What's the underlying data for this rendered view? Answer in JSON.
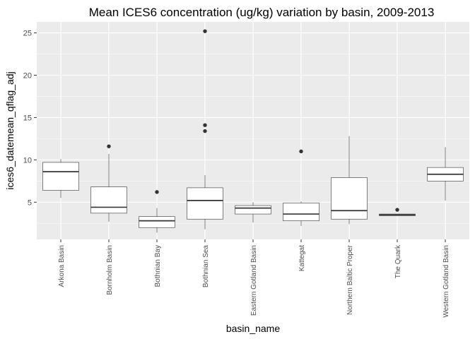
{
  "chart_data": {
    "type": "box",
    "title": "Mean ICES6 concentration (ug/kg) variation by basin, 2009-2013",
    "xlabel": "basin_name",
    "ylabel": "ices6_datemean_qflag_adj",
    "ylim": [
      0.6,
      26.3
    ],
    "yticks": [
      5,
      10,
      15,
      20,
      25
    ],
    "ytick_labels": [
      "5",
      "10",
      "15",
      "20",
      "25"
    ],
    "grid": true,
    "legend": "none",
    "colors": {
      "panel_background": "#ebebeb",
      "grid_major": "#ffffff",
      "box_fill": "#ffffff",
      "box_line": "#333333",
      "outlier": "#333333"
    },
    "categories": [
      "Arkona Basin",
      "Bornholm Basin",
      "Bothnian Bay",
      "Bothnian Sea",
      "Eastern Gotland Basin",
      "Kattegat",
      "Northern Baltic Proper",
      "The Quark",
      "Western Gotland Basin"
    ],
    "boxes": [
      {
        "min": 5.5,
        "q1": 6.4,
        "median": 8.6,
        "q3": 9.7,
        "max": 10.1,
        "outliers": []
      },
      {
        "min": 2.7,
        "q1": 3.7,
        "median": 4.4,
        "q3": 6.8,
        "max": 10.7,
        "outliers": [
          11.6
        ]
      },
      {
        "min": 1.4,
        "q1": 2.0,
        "median": 2.8,
        "q3": 3.3,
        "max": 4.3,
        "outliers": [
          6.2
        ]
      },
      {
        "min": 1.8,
        "q1": 3.0,
        "median": 5.2,
        "q3": 6.7,
        "max": 8.2,
        "outliers": [
          13.4,
          14.1,
          25.2
        ]
      },
      {
        "min": 2.6,
        "q1": 3.6,
        "median": 4.3,
        "q3": 4.6,
        "max": 5.0,
        "outliers": []
      },
      {
        "min": 2.2,
        "q1": 2.8,
        "median": 3.6,
        "q3": 4.9,
        "max": 5.1,
        "outliers": [
          11.0
        ]
      },
      {
        "min": 2.4,
        "q1": 3.0,
        "median": 4.0,
        "q3": 7.9,
        "max": 12.8,
        "outliers": []
      },
      {
        "min": 3.4,
        "q1": 3.4,
        "median": 3.5,
        "q3": 3.6,
        "max": 3.6,
        "outliers": [
          4.1
        ]
      },
      {
        "min": 5.2,
        "q1": 7.5,
        "median": 8.3,
        "q3": 9.1,
        "max": 11.5,
        "outliers": []
      }
    ]
  }
}
